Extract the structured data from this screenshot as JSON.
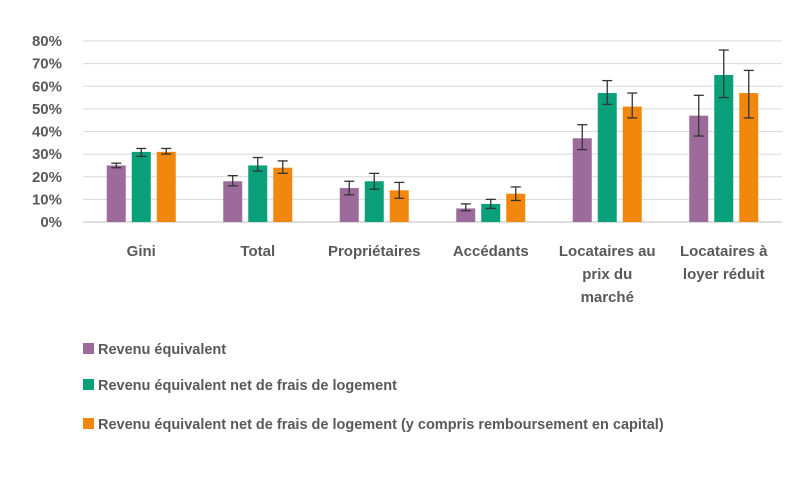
{
  "chart_data": {
    "type": "bar",
    "categories": [
      [
        "Gini"
      ],
      [
        "Total"
      ],
      [
        "Propriétaires"
      ],
      [
        "Accédants"
      ],
      [
        "Locataires au",
        "prix du",
        "marché"
      ],
      [
        "Locataires à",
        "loyer réduit"
      ]
    ],
    "series": [
      {
        "name": "Revenu équivalent",
        "color": "#9c6b9c",
        "values": [
          25,
          18,
          15,
          6,
          37,
          47
        ],
        "error_low": [
          24,
          16,
          12,
          5,
          32,
          38
        ],
        "error_high": [
          26,
          20.5,
          18,
          8,
          43,
          56
        ]
      },
      {
        "name": "Revenu équivalent net de frais de logement",
        "color": "#0aa07a",
        "values": [
          31,
          25,
          18,
          8,
          57,
          65
        ],
        "error_low": [
          29,
          22.5,
          14.5,
          6,
          52,
          55
        ],
        "error_high": [
          32.5,
          28.5,
          21.5,
          10,
          62.5,
          76
        ]
      },
      {
        "name": "Revenu équivalent net de frais de logement (y compris remboursement en capital)",
        "color": "#f2870d",
        "values": [
          31,
          24,
          14,
          12.5,
          51,
          57
        ],
        "error_low": [
          30,
          21.5,
          10.5,
          9.5,
          46,
          46
        ],
        "error_high": [
          32.5,
          27,
          17.5,
          15.5,
          57,
          67
        ]
      }
    ],
    "y_ticks": [
      "0%",
      "10%",
      "20%",
      "30%",
      "40%",
      "50%",
      "60%",
      "70%",
      "80%"
    ],
    "ylim": [
      0,
      80
    ],
    "grid": true,
    "legend_position": "bottom"
  }
}
